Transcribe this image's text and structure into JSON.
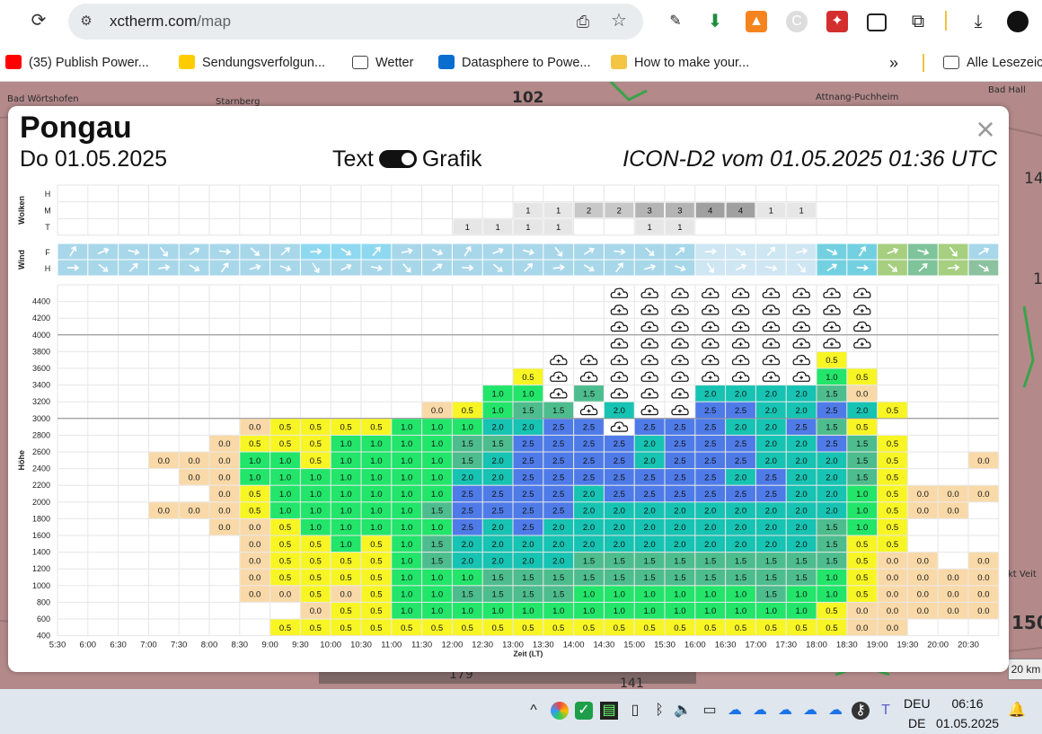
{
  "browser": {
    "url_host": "xctherm.com",
    "url_path": "/map",
    "bookmarks": [
      {
        "label": "(35) Publish Power...",
        "icon": "youtube-icon",
        "color": "#ff0000"
      },
      {
        "label": "Sendungsverfolgun...",
        "icon": "dhl-icon",
        "color": "#ffcc00"
      },
      {
        "label": "Wetter",
        "icon": "folder-icon",
        "color": "#ffffff"
      },
      {
        "label": "Datasphere to Powe...",
        "icon": "sap-icon",
        "color": "#0a6ed1"
      },
      {
        "label": "How to make your...",
        "icon": "chart-icon",
        "color": "#f4c542"
      }
    ],
    "more_bookmarks": "»",
    "all_bookmarks": "Alle Lesezeic"
  },
  "map": {
    "labels": [
      {
        "text": "Bad Wörtshofen",
        "name": "map-label-badwoertshofen"
      },
      {
        "text": "Starnberg",
        "name": "map-label-starnberg"
      },
      {
        "text": "102",
        "name": "map-label-102"
      },
      {
        "text": "Attnang-Puchheim",
        "name": "map-label-attnang"
      },
      {
        "text": "Bad Hall",
        "name": "map-label-badhall"
      },
      {
        "text": "14",
        "name": "map-label-14"
      },
      {
        "text": "1",
        "name": "map-label-1"
      },
      {
        "text": "kt Veit",
        "name": "map-label-veit"
      },
      {
        "text": "150",
        "name": "map-label-150"
      },
      {
        "text": "179",
        "name": "map-label-179"
      },
      {
        "text": "141",
        "name": "map-label-141"
      }
    ],
    "scale": "20 km"
  },
  "modal": {
    "place": "Pongau",
    "date": "Do 01.05.2025",
    "toggle_left": "Text",
    "toggle_right": "Grafik",
    "model": "ICON-D2 vom 01.05.2025 01:36 UTC",
    "close": "×"
  },
  "chart_data": {
    "type": "heatmap",
    "xlabel": "Zeit (LT)",
    "ylabel": "Höhe",
    "times": [
      "5:30",
      "6:00",
      "6:30",
      "7:00",
      "7:30",
      "8:00",
      "8:30",
      "9:00",
      "9:30",
      "10:00",
      "10:30",
      "11:00",
      "11:30",
      "12:00",
      "12:30",
      "13:00",
      "13:30",
      "14:00",
      "14:30",
      "15:00",
      "15:30",
      "16:00",
      "16:30",
      "17:00",
      "17:30",
      "18:00",
      "18:30",
      "19:00",
      "19:30",
      "20:00",
      "20:30"
    ],
    "cloud_section_label": "Wolken",
    "cloud_rows": [
      "H",
      "M",
      "T"
    ],
    "clouds": {
      "M": [
        null,
        null,
        null,
        null,
        null,
        null,
        null,
        null,
        null,
        null,
        null,
        null,
        null,
        null,
        null,
        "1",
        "1",
        "2",
        "2",
        "3",
        "3",
        "4",
        "4",
        "1",
        "1",
        null,
        null,
        null,
        null,
        null,
        null
      ],
      "T": [
        null,
        null,
        null,
        null,
        null,
        null,
        null,
        null,
        null,
        null,
        null,
        null,
        null,
        "1",
        "1",
        "1",
        "1",
        null,
        null,
        "1",
        "1",
        null,
        null,
        null,
        null,
        null,
        null,
        null,
        null,
        null,
        null
      ]
    },
    "wind_section_label": "Wind",
    "wind_rows": [
      "F",
      "H"
    ],
    "heights": [
      "4400",
      "4200",
      "4000",
      "3800",
      "3600",
      "3400",
      "3200",
      "3000",
      "2800",
      "2600",
      "2400",
      "2200",
      "2000",
      "1800",
      "1600",
      "1400",
      "1200",
      "1000",
      "800",
      "600",
      "400"
    ],
    "legend_colors": {
      "0.0": "#f9d9a8",
      "0.5": "#f8f524",
      "1.0": "#22e56a",
      "1.5": "#4dbd8d",
      "2.0": "#17c3b2",
      "2.5": "#4f7be8"
    },
    "grid": [
      [
        null,
        null,
        null,
        null,
        null,
        null,
        null,
        null,
        null,
        null,
        null,
        null,
        null,
        null,
        null,
        null,
        null,
        null,
        "C",
        "C",
        "C",
        "C",
        "C",
        "C",
        "C",
        "C",
        "C",
        null,
        null,
        null,
        null
      ],
      [
        null,
        null,
        null,
        null,
        null,
        null,
        null,
        null,
        null,
        null,
        null,
        null,
        null,
        null,
        null,
        null,
        null,
        null,
        "C",
        "C",
        "C",
        "C",
        "C",
        "C",
        "C",
        "C",
        "C",
        null,
        null,
        null,
        null
      ],
      [
        null,
        null,
        null,
        null,
        null,
        null,
        null,
        null,
        null,
        null,
        null,
        null,
        null,
        null,
        null,
        null,
        null,
        null,
        "C",
        "C",
        "C",
        "C",
        "C",
        "C",
        "C",
        "C",
        "C",
        null,
        null,
        null,
        null
      ],
      [
        null,
        null,
        null,
        null,
        null,
        null,
        null,
        null,
        null,
        null,
        null,
        null,
        null,
        null,
        null,
        null,
        null,
        null,
        "C",
        "C",
        "C",
        "C",
        "C",
        "C",
        "C",
        "C",
        "C",
        null,
        null,
        null,
        null
      ],
      [
        null,
        null,
        null,
        null,
        null,
        null,
        null,
        null,
        null,
        null,
        null,
        null,
        null,
        null,
        null,
        null,
        "C",
        "C",
        "C",
        "C",
        "C",
        "C",
        "C",
        "C",
        "C",
        "0.5",
        null,
        null,
        null,
        null,
        null
      ],
      [
        null,
        null,
        null,
        null,
        null,
        null,
        null,
        null,
        null,
        null,
        null,
        null,
        null,
        null,
        null,
        "0.5",
        "C",
        "C",
        "C",
        "C",
        "C",
        "C",
        "C",
        "C",
        "C",
        "1.0",
        "0.5",
        null,
        null,
        null,
        null
      ],
      [
        null,
        null,
        null,
        null,
        null,
        null,
        null,
        null,
        null,
        null,
        null,
        null,
        null,
        null,
        "1.0",
        "1.0",
        "C",
        "1.5",
        "C",
        "C",
        "C",
        "2.0",
        "2.0",
        "2.0",
        "2.0",
        "1.5",
        "0.0",
        null,
        null,
        null,
        null
      ],
      [
        null,
        null,
        null,
        null,
        null,
        null,
        null,
        null,
        null,
        null,
        null,
        null,
        "0.0",
        "0.5",
        "1.0",
        "1.5",
        "1.5",
        "C",
        "2.0",
        "C",
        "C",
        "2.5",
        "2.5",
        "2.0",
        "2.0",
        "2.5",
        "2.0",
        "0.5",
        null,
        null,
        null
      ],
      [
        null,
        null,
        null,
        null,
        null,
        null,
        "0.0",
        "0.5",
        "0.5",
        "0.5",
        "0.5",
        "1.0",
        "1.0",
        "1.0",
        "2.0",
        "2.0",
        "2.5",
        "2.5",
        "C",
        "2.5",
        "2.5",
        "2.5",
        "2.0",
        "2.0",
        "2.5",
        "1.5",
        "0.5",
        null,
        null,
        null,
        null
      ],
      [
        null,
        null,
        null,
        null,
        null,
        "0.0",
        "0.5",
        "0.5",
        "0.5",
        "1.0",
        "1.0",
        "1.0",
        "1.0",
        "1.5",
        "1.5",
        "2.5",
        "2.5",
        "2.5",
        "2.5",
        "2.0",
        "2.5",
        "2.5",
        "2.5",
        "2.0",
        "2.0",
        "2.5",
        "1.5",
        "0.5",
        null,
        null,
        null
      ],
      [
        null,
        null,
        null,
        "0.0",
        "0.0",
        "0.0",
        "1.0",
        "1.0",
        "0.5",
        "1.0",
        "1.0",
        "1.0",
        "1.0",
        "1.5",
        "2.0",
        "2.5",
        "2.5",
        "2.5",
        "2.5",
        "2.0",
        "2.5",
        "2.5",
        "2.5",
        "2.0",
        "2.0",
        "2.0",
        "1.5",
        "0.5",
        null,
        null,
        "0.0"
      ],
      [
        null,
        null,
        null,
        null,
        "0.0",
        "0.0",
        "1.0",
        "1.0",
        "1.0",
        "1.0",
        "1.0",
        "1.0",
        "1.0",
        "2.0",
        "2.0",
        "2.5",
        "2.5",
        "2.5",
        "2.5",
        "2.5",
        "2.5",
        "2.5",
        "2.0",
        "2.5",
        "2.0",
        "2.0",
        "1.5",
        "0.5",
        null,
        null,
        null
      ],
      [
        null,
        null,
        null,
        null,
        null,
        "0.0",
        "0.5",
        "1.0",
        "1.0",
        "1.0",
        "1.0",
        "1.0",
        "1.0",
        "2.5",
        "2.5",
        "2.5",
        "2.5",
        "2.0",
        "2.5",
        "2.5",
        "2.5",
        "2.5",
        "2.5",
        "2.5",
        "2.0",
        "2.0",
        "1.0",
        "0.5",
        "0.0",
        "0.0",
        "0.0"
      ],
      [
        null,
        null,
        null,
        "0.0",
        "0.0",
        "0.0",
        "0.5",
        "1.0",
        "1.0",
        "1.0",
        "1.0",
        "1.0",
        "1.5",
        "2.5",
        "2.5",
        "2.5",
        "2.5",
        "2.0",
        "2.0",
        "2.0",
        "2.0",
        "2.0",
        "2.0",
        "2.0",
        "2.0",
        "2.0",
        "1.0",
        "0.5",
        "0.0",
        "0.0",
        null
      ],
      [
        null,
        null,
        null,
        null,
        null,
        "0.0",
        "0.0",
        "0.5",
        "1.0",
        "1.0",
        "1.0",
        "1.0",
        "1.0",
        "2.5",
        "2.0",
        "2.5",
        "2.0",
        "2.0",
        "2.0",
        "2.0",
        "2.0",
        "2.0",
        "2.0",
        "2.0",
        "2.0",
        "1.5",
        "1.0",
        "0.5",
        null,
        null,
        null
      ],
      [
        null,
        null,
        null,
        null,
        null,
        null,
        "0.0",
        "0.5",
        "0.5",
        "1.0",
        "0.5",
        "1.0",
        "1.5",
        "2.0",
        "2.0",
        "2.0",
        "2.0",
        "2.0",
        "2.0",
        "2.0",
        "2.0",
        "2.0",
        "2.0",
        "2.0",
        "2.0",
        "1.5",
        "0.5",
        "0.5",
        null,
        null,
        null
      ],
      [
        null,
        null,
        null,
        null,
        null,
        null,
        "0.0",
        "0.5",
        "0.5",
        "0.5",
        "0.5",
        "1.0",
        "1.5",
        "2.0",
        "2.0",
        "2.0",
        "2.0",
        "1.5",
        "1.5",
        "1.5",
        "1.5",
        "1.5",
        "1.5",
        "1.5",
        "1.5",
        "1.5",
        "0.5",
        "0.0",
        "0.0",
        null,
        "0.0"
      ],
      [
        null,
        null,
        null,
        null,
        null,
        null,
        "0.0",
        "0.5",
        "0.5",
        "0.5",
        "0.5",
        "1.0",
        "1.0",
        "1.0",
        "1.5",
        "1.5",
        "1.5",
        "1.5",
        "1.5",
        "1.5",
        "1.5",
        "1.5",
        "1.5",
        "1.5",
        "1.5",
        "1.0",
        "0.5",
        "0.0",
        "0.0",
        "0.0",
        "0.0"
      ],
      [
        null,
        null,
        null,
        null,
        null,
        null,
        "0.0",
        "0.0",
        "0.5",
        "0.0",
        "0.5",
        "1.0",
        "1.0",
        "1.5",
        "1.5",
        "1.5",
        "1.5",
        "1.0",
        "1.0",
        "1.0",
        "1.0",
        "1.0",
        "1.0",
        "1.5",
        "1.0",
        "1.0",
        "0.5",
        "0.0",
        "0.0",
        "0.0",
        "0.0"
      ],
      [
        null,
        null,
        null,
        null,
        null,
        null,
        null,
        null,
        "0.0",
        "0.5",
        "0.5",
        "1.0",
        "1.0",
        "1.0",
        "1.0",
        "1.0",
        "1.0",
        "1.0",
        "1.0",
        "1.0",
        "1.0",
        "1.0",
        "1.0",
        "1.0",
        "1.0",
        "0.5",
        "0.0",
        "0.0",
        "0.0",
        "0.0",
        "0.0"
      ],
      [
        null,
        null,
        null,
        null,
        null,
        null,
        null,
        "0.5",
        "0.5",
        "0.5",
        "0.5",
        "0.5",
        "0.5",
        "0.5",
        "0.5",
        "0.5",
        "0.5",
        "0.5",
        "0.5",
        "0.5",
        "0.5",
        "0.5",
        "0.5",
        "0.5",
        "0.5",
        "0.5",
        "0.0",
        "0.0",
        null,
        null,
        null
      ]
    ]
  },
  "taskbar": {
    "lang_top": "DEU",
    "lang_bottom": "DE",
    "time": "06:16",
    "date": "01.05.2025"
  }
}
